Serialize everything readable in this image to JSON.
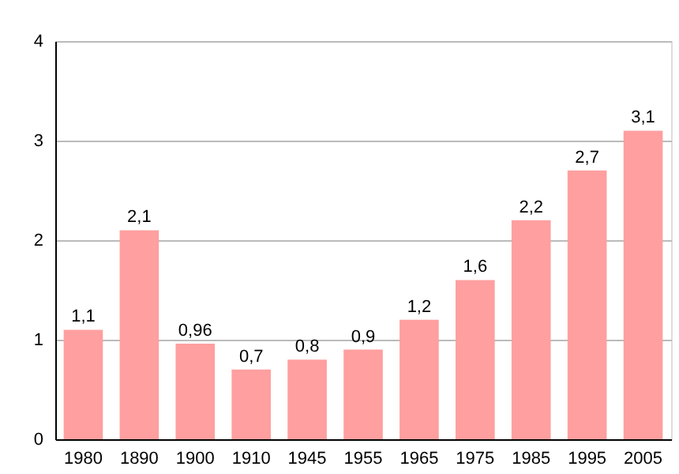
{
  "chart_data": {
    "type": "bar",
    "categories": [
      "1980",
      "1890",
      "1900",
      "1910",
      "1945",
      "1955",
      "1965",
      "1975",
      "1985",
      "1995",
      "2005"
    ],
    "values": [
      1.1,
      2.1,
      0.96,
      0.7,
      0.8,
      0.9,
      1.2,
      1.6,
      2.2,
      2.7,
      3.1
    ],
    "value_labels": [
      "1,1",
      "2,1",
      "0,96",
      "0,7",
      "0,8",
      "0,9",
      "1,2",
      "1,6",
      "2,2",
      "2,7",
      "3,1"
    ],
    "color": "#ff9f9f",
    "ylim": [
      0,
      4
    ],
    "yticks": [
      0,
      1,
      2,
      3,
      4
    ],
    "grid": "y"
  }
}
